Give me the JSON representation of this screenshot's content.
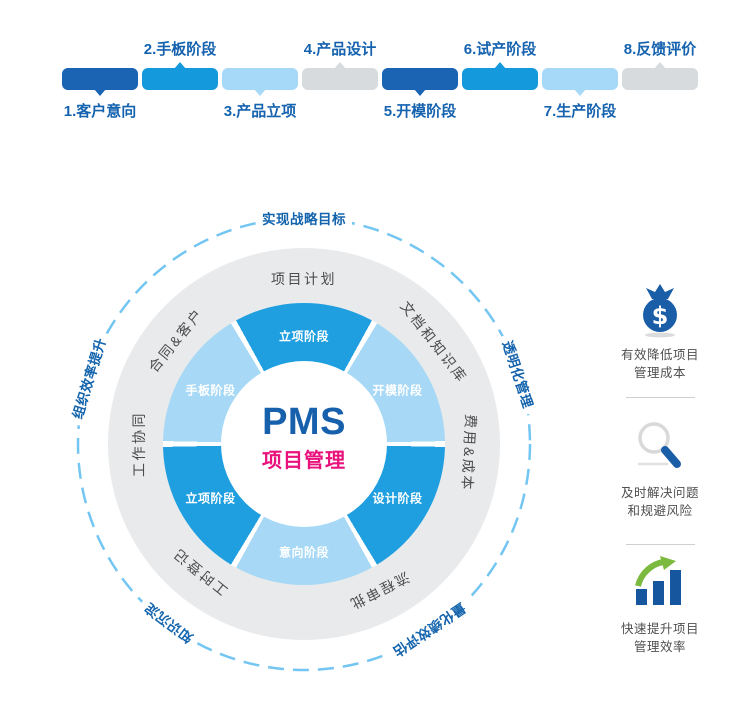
{
  "timeline": {
    "label_color": "#1562af",
    "stages": [
      {
        "label": "1.客户意向",
        "color": "#1b63b3",
        "label_pos": "below"
      },
      {
        "label": "2.手板阶段",
        "color": "#149adc",
        "label_pos": "above"
      },
      {
        "label": "3.产品立项",
        "color": "#a6d9f7",
        "label_pos": "below"
      },
      {
        "label": "4.产品设计",
        "color": "#d8dbdd",
        "label_pos": "above"
      },
      {
        "label": "5.开模阶段",
        "color": "#1b63b3",
        "label_pos": "below"
      },
      {
        "label": "6.试产阶段",
        "color": "#149adc",
        "label_pos": "above"
      },
      {
        "label": "7.生产阶段",
        "color": "#a6d9f7",
        "label_pos": "below"
      },
      {
        "label": "8.反馈评价",
        "color": "#d8dbdd",
        "label_pos": "above"
      }
    ]
  },
  "wheel": {
    "center_title": "PMS",
    "center_subtitle": "项目管理",
    "segments": [
      {
        "label": "立项阶段",
        "angle": 0,
        "color": "#1f9fe0"
      },
      {
        "label": "开模阶段",
        "angle": 60,
        "color": "#a7d9f6"
      },
      {
        "label": "设计阶段",
        "angle": 120,
        "color": "#1f9fe0"
      },
      {
        "label": "意向阶段",
        "angle": 180,
        "color": "#a7d9f6"
      },
      {
        "label": "立项阶段",
        "angle": 240,
        "color": "#1f9fe0"
      },
      {
        "label": "手板阶段",
        "angle": 300,
        "color": "#a7d9f6"
      }
    ],
    "ring_labels": [
      {
        "label": "项目计划",
        "angle": 0
      },
      {
        "label": "文档和知识库",
        "angle": 52
      },
      {
        "label": "费用&成本",
        "angle": 93
      },
      {
        "label": "流程审批",
        "angle": 153
      },
      {
        "label": "工时登记",
        "angle": 219
      },
      {
        "label": "工作协同",
        "angle": 270
      },
      {
        "label": "合同&客户",
        "angle": 309
      }
    ],
    "outer_labels": [
      {
        "label": "实现战略目标",
        "angle": 0
      },
      {
        "label": "透明化管理",
        "angle": 72
      },
      {
        "label": "量化绩效评估",
        "angle": 146
      },
      {
        "label": "知识沉淀",
        "angle": 217
      },
      {
        "label": "组织效率提升",
        "angle": 287
      }
    ],
    "colors": {
      "ring_bg": "#e9eaec",
      "dashed_circle": "#73c5f2",
      "center_title": "#1660ac",
      "center_subtitle": "#e9127c",
      "ring_label": "#4b4b4b",
      "outer_label": "#1464ad",
      "pie_blue": "#1f9fe0",
      "pie_light_blue": "#a7d9f6"
    }
  },
  "benefits": {
    "items": [
      {
        "icon": "money-bag-icon",
        "line1": "有效降低项目",
        "line2": "管理成本"
      },
      {
        "icon": "magnifier-icon",
        "line1": "及时解决问题",
        "line2": "和规避风险"
      },
      {
        "icon": "bar-chart-icon",
        "line1": "快速提升项目",
        "line2": "管理效率"
      }
    ]
  }
}
